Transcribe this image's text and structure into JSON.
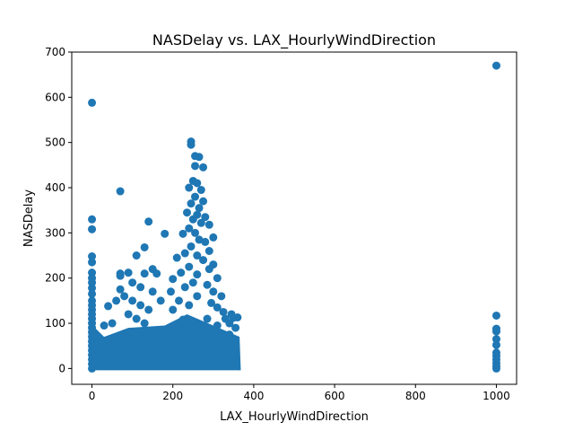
{
  "chart_data": {
    "type": "scatter",
    "title": "NASDelay vs. LAX_HourlyWindDirection",
    "xlabel": "LAX_HourlyWindDirection",
    "ylabel": "NASDelay",
    "xlim": [
      -50,
      1050
    ],
    "ylim": [
      -35,
      700
    ],
    "xticks": [
      0,
      200,
      400,
      600,
      800,
      1000
    ],
    "yticks": [
      0,
      100,
      200,
      300,
      400,
      500,
      600,
      700
    ],
    "grid": false,
    "series": [
      {
        "color": "#1f77b4",
        "points": [
          [
            0,
            588
          ],
          [
            0,
            330
          ],
          [
            0,
            308
          ],
          [
            0,
            248
          ],
          [
            0,
            235
          ],
          [
            0,
            212
          ],
          [
            0,
            200
          ],
          [
            0,
            190
          ],
          [
            0,
            178
          ],
          [
            0,
            165
          ],
          [
            0,
            150
          ],
          [
            0,
            140
          ],
          [
            0,
            130
          ],
          [
            0,
            120
          ],
          [
            0,
            110
          ],
          [
            0,
            100
          ],
          [
            0,
            90
          ],
          [
            0,
            80
          ],
          [
            0,
            70
          ],
          [
            0,
            60
          ],
          [
            0,
            50
          ],
          [
            0,
            40
          ],
          [
            0,
            30
          ],
          [
            0,
            20
          ],
          [
            0,
            10
          ],
          [
            0,
            0
          ],
          [
            70,
            392
          ],
          [
            70,
            210
          ],
          [
            70,
            205
          ],
          [
            70,
            175
          ],
          [
            90,
            212
          ],
          [
            100,
            190
          ],
          [
            110,
            250
          ],
          [
            140,
            325
          ],
          [
            130,
            268
          ],
          [
            180,
            298
          ],
          [
            150,
            220
          ],
          [
            160,
            210
          ],
          [
            130,
            210
          ],
          [
            120,
            180
          ],
          [
            150,
            170
          ],
          [
            170,
            150
          ],
          [
            40,
            138
          ],
          [
            60,
            150
          ],
          [
            80,
            160
          ],
          [
            100,
            150
          ],
          [
            120,
            140
          ],
          [
            140,
            130
          ],
          [
            90,
            120
          ],
          [
            110,
            110
          ],
          [
            50,
            100
          ],
          [
            30,
            95
          ],
          [
            130,
            100
          ],
          [
            245,
            502
          ],
          [
            245,
            495
          ],
          [
            255,
            470
          ],
          [
            265,
            468
          ],
          [
            255,
            448
          ],
          [
            275,
            445
          ],
          [
            250,
            415
          ],
          [
            260,
            410
          ],
          [
            240,
            400
          ],
          [
            270,
            395
          ],
          [
            255,
            380
          ],
          [
            275,
            370
          ],
          [
            245,
            365
          ],
          [
            265,
            355
          ],
          [
            235,
            345
          ],
          [
            260,
            340
          ],
          [
            280,
            335
          ],
          [
            250,
            330
          ],
          [
            270,
            322
          ],
          [
            290,
            318
          ],
          [
            240,
            310
          ],
          [
            255,
            300
          ],
          [
            225,
            298
          ],
          [
            300,
            290
          ],
          [
            265,
            285
          ],
          [
            280,
            280
          ],
          [
            245,
            270
          ],
          [
            290,
            260
          ],
          [
            230,
            255
          ],
          [
            260,
            250
          ],
          [
            210,
            245
          ],
          [
            275,
            240
          ],
          [
            300,
            230
          ],
          [
            240,
            225
          ],
          [
            290,
            220
          ],
          [
            220,
            212
          ],
          [
            260,
            208
          ],
          [
            310,
            200
          ],
          [
            200,
            198
          ],
          [
            250,
            190
          ],
          [
            285,
            185
          ],
          [
            230,
            180
          ],
          [
            300,
            170
          ],
          [
            195,
            170
          ],
          [
            320,
            160
          ],
          [
            260,
            160
          ],
          [
            215,
            150
          ],
          [
            295,
            145
          ],
          [
            240,
            140
          ],
          [
            310,
            135
          ],
          [
            200,
            130
          ],
          [
            325,
            125
          ],
          [
            345,
            120
          ],
          [
            330,
            110
          ],
          [
            350,
            112
          ],
          [
            360,
            113
          ],
          [
            285,
            110
          ],
          [
            225,
            108
          ],
          [
            340,
            100
          ],
          [
            310,
            95
          ],
          [
            260,
            95
          ],
          [
            355,
            90
          ],
          [
            300,
            80
          ],
          [
            340,
            75
          ],
          [
            1000,
            670
          ],
          [
            1000,
            117
          ],
          [
            1000,
            88
          ],
          [
            1000,
            82
          ],
          [
            1000,
            65
          ],
          [
            1000,
            52
          ],
          [
            1000,
            35
          ],
          [
            1000,
            28
          ],
          [
            1000,
            20
          ],
          [
            1000,
            12
          ],
          [
            1000,
            5
          ],
          [
            1000,
            0
          ]
        ]
      }
    ]
  }
}
